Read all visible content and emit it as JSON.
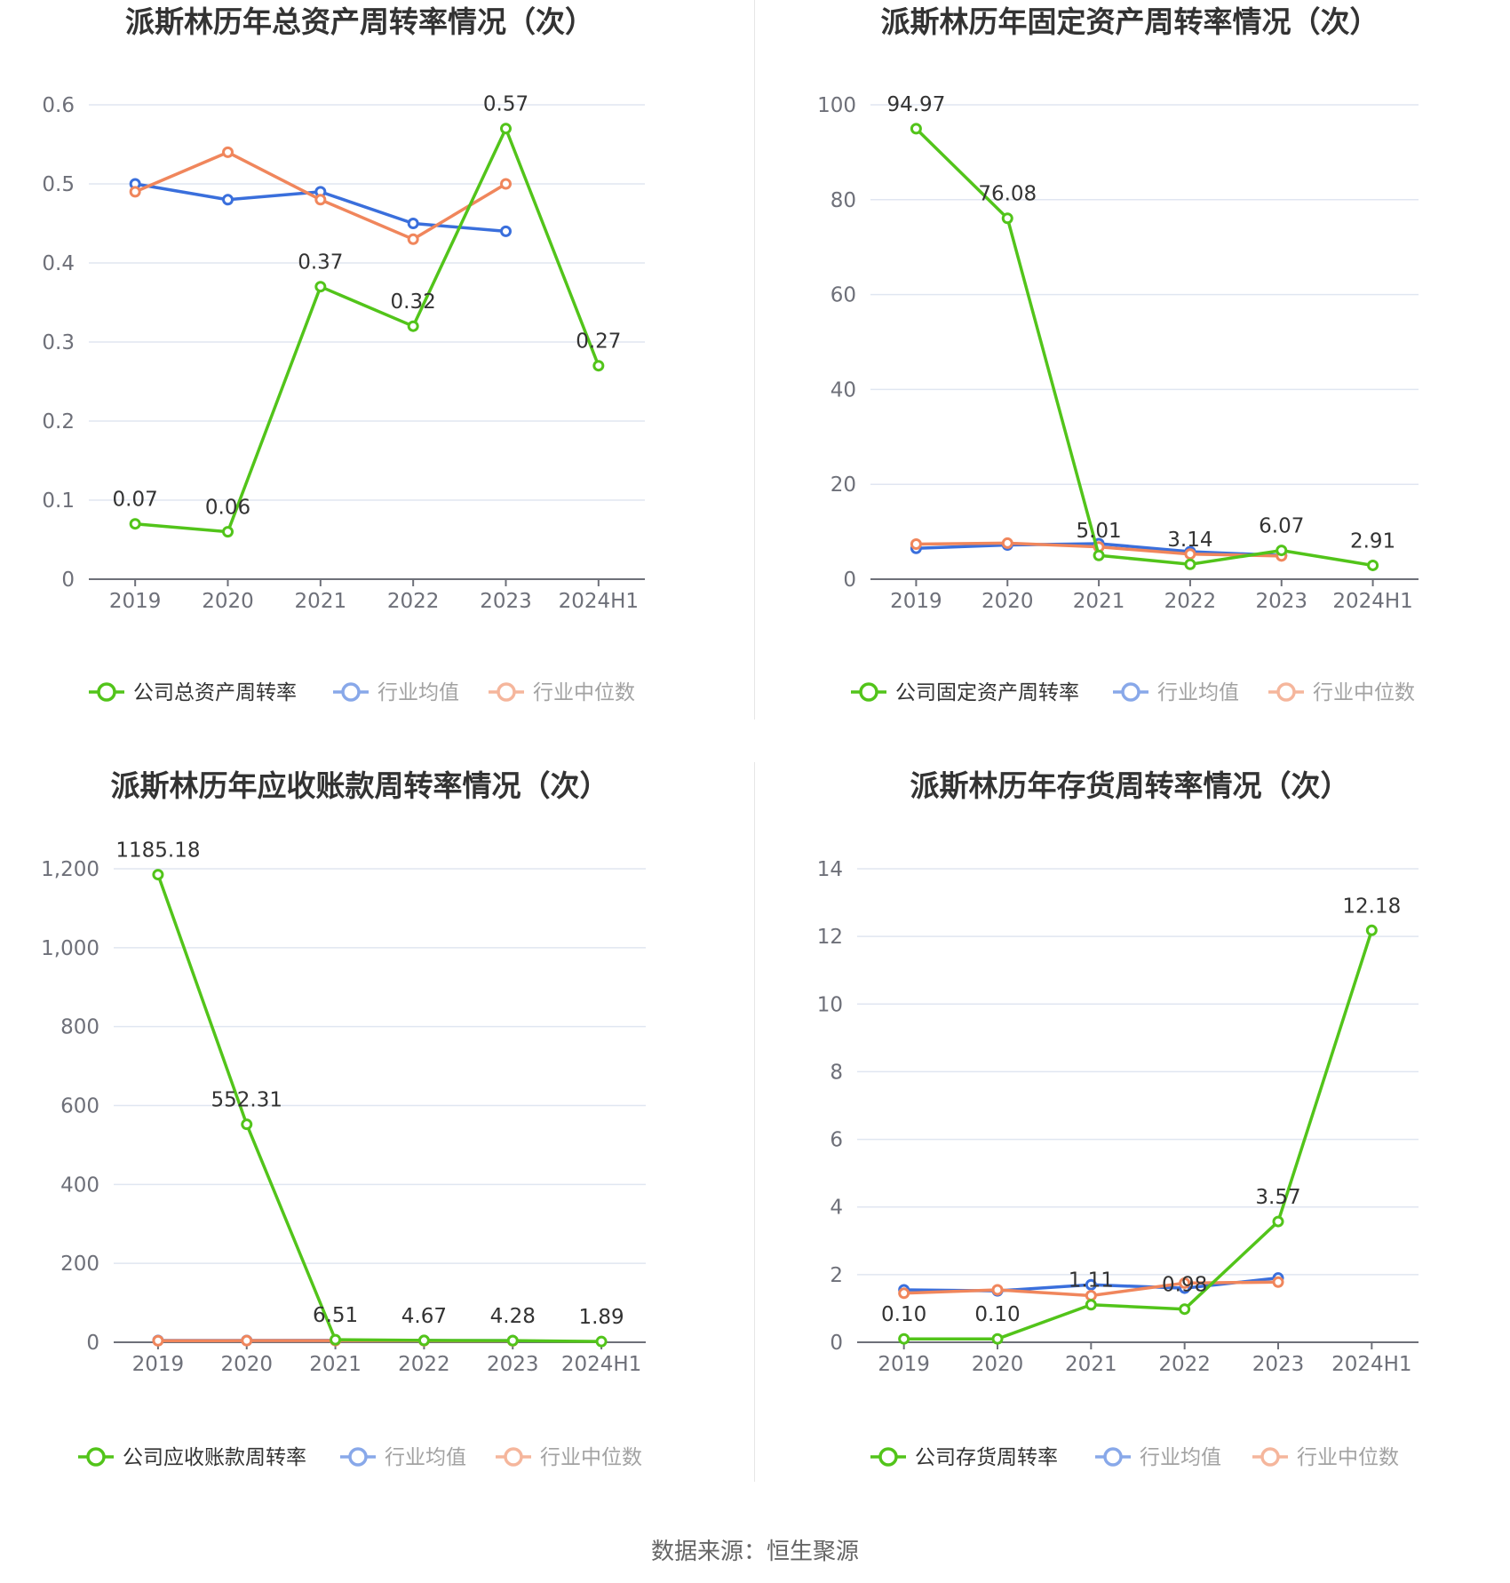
{
  "source_label": "数据来源：恒生聚源",
  "colors": {
    "company": "#52c41a",
    "industry_avg": "#3a6fdc",
    "industry_median": "#f0865c",
    "grid": "#e0e6f1",
    "axis": "#6e7079",
    "title": "#333333"
  },
  "chart_data": [
    {
      "type": "line",
      "title": "派斯林历年总资产周转率情况（次）",
      "categories": [
        "2019",
        "2020",
        "2021",
        "2022",
        "2023",
        "2024H1"
      ],
      "ylim": [
        0,
        0.6
      ],
      "yticks": [
        0,
        0.1,
        0.2,
        0.3,
        0.4,
        0.5,
        0.6
      ],
      "ytick_labels": [
        "0",
        "0.1",
        "0.2",
        "0.3",
        "0.4",
        "0.5",
        "0.6"
      ],
      "grid": true,
      "legend_position": "bottom",
      "series": [
        {
          "name": "公司总资产周转率",
          "role": "company",
          "values": [
            0.07,
            0.06,
            0.37,
            0.32,
            0.57,
            0.27
          ],
          "labels": [
            "0.07",
            "0.06",
            "0.37",
            "0.32",
            "0.57",
            "0.27"
          ]
        },
        {
          "name": "行业均值",
          "role": "industry_avg",
          "values": [
            0.5,
            0.48,
            0.49,
            0.45,
            0.44,
            null
          ]
        },
        {
          "name": "行业中位数",
          "role": "industry_median",
          "values": [
            0.49,
            0.54,
            0.48,
            0.43,
            0.5,
            null
          ]
        }
      ]
    },
    {
      "type": "line",
      "title": "派斯林历年固定资产周转率情况（次）",
      "categories": [
        "2019",
        "2020",
        "2021",
        "2022",
        "2023",
        "2024H1"
      ],
      "ylim": [
        0,
        100
      ],
      "yticks": [
        0,
        20,
        40,
        60,
        80,
        100
      ],
      "ytick_labels": [
        "0",
        "20",
        "40",
        "60",
        "80",
        "100"
      ],
      "grid": true,
      "legend_position": "bottom",
      "series": [
        {
          "name": "公司固定资产周转率",
          "role": "company",
          "values": [
            94.97,
            76.08,
            5.01,
            3.14,
            6.07,
            2.91
          ],
          "labels": [
            "94.97",
            "76.08",
            "5.01",
            "3.14",
            "6.07",
            "2.91"
          ]
        },
        {
          "name": "行业均值",
          "role": "industry_avg",
          "values": [
            6.5,
            7.2,
            7.5,
            5.8,
            5.0,
            null
          ]
        },
        {
          "name": "行业中位数",
          "role": "industry_median",
          "values": [
            7.4,
            7.6,
            6.8,
            5.3,
            4.9,
            null
          ]
        }
      ]
    },
    {
      "type": "line",
      "title": "派斯林历年应收账款周转率情况（次）",
      "categories": [
        "2019",
        "2020",
        "2021",
        "2022",
        "2023",
        "2024H1"
      ],
      "ylim": [
        0,
        1200
      ],
      "yticks": [
        0,
        200,
        400,
        600,
        800,
        1000,
        1200
      ],
      "ytick_labels": [
        "0",
        "200",
        "400",
        "600",
        "800",
        "1,000",
        "1,200"
      ],
      "grid": true,
      "legend_position": "bottom",
      "series": [
        {
          "name": "公司应收账款周转率",
          "role": "company",
          "values": [
            1185.18,
            552.31,
            6.51,
            4.67,
            4.28,
            1.89
          ],
          "labels": [
            "1185.18",
            "552.31",
            "6.51",
            "4.67",
            "4.28",
            "1.89"
          ]
        },
        {
          "name": "行业均值",
          "role": "industry_avg",
          "values": [
            4.5,
            4.6,
            4.8,
            4.4,
            4.1,
            null
          ]
        },
        {
          "name": "行业中位数",
          "role": "industry_median",
          "values": [
            3.9,
            4.1,
            4.3,
            3.8,
            3.6,
            null
          ]
        }
      ]
    },
    {
      "type": "line",
      "title": "派斯林历年存货周转率情况（次）",
      "categories": [
        "2019",
        "2020",
        "2021",
        "2022",
        "2023",
        "2024H1"
      ],
      "ylim": [
        0,
        14
      ],
      "yticks": [
        0,
        2,
        4,
        6,
        8,
        10,
        12,
        14
      ],
      "ytick_labels": [
        "0",
        "2",
        "4",
        "6",
        "8",
        "10",
        "12",
        "14"
      ],
      "grid": true,
      "legend_position": "bottom",
      "series": [
        {
          "name": "公司存货周转率",
          "role": "company",
          "values": [
            0.1,
            0.1,
            1.11,
            0.98,
            3.57,
            12.18
          ],
          "labels": [
            "0.10",
            "0.10",
            "1.11",
            "0.98",
            "3.57",
            "12.18"
          ]
        },
        {
          "name": "行业均值",
          "role": "industry_avg",
          "values": [
            1.55,
            1.52,
            1.7,
            1.6,
            1.9,
            null
          ]
        },
        {
          "name": "行业中位数",
          "role": "industry_median",
          "values": [
            1.45,
            1.55,
            1.38,
            1.75,
            1.78,
            null
          ]
        }
      ]
    }
  ]
}
